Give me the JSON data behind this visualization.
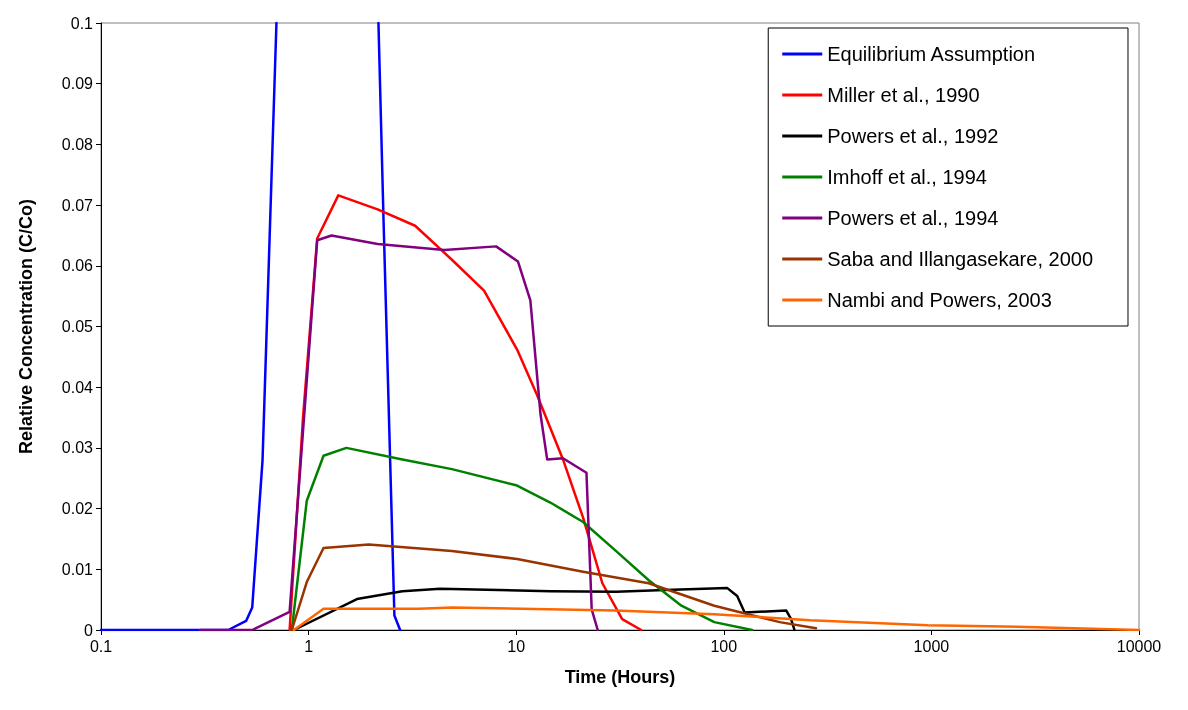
{
  "chart_data": {
    "type": "line",
    "xlabel": "Time (Hours)",
    "ylabel": "Relative Concentration (C/Co)",
    "log": "x",
    "xlim": [
      0.1,
      10000
    ],
    "xticks": [
      0.1,
      1,
      10,
      100,
      1000,
      10000
    ],
    "ylim": [
      0,
      0.1
    ],
    "yticks": [
      0,
      0.01,
      0.02,
      0.03,
      0.04,
      0.05,
      0.06,
      0.07,
      0.08,
      0.09,
      0.1
    ],
    "grid": false,
    "legend": "top right",
    "marker": "none",
    "line_style": "solid",
    "series": [
      {
        "name": "Equilibrium Assumption",
        "color": "#0000ff",
        "x": [
          0.1,
          0.3,
          0.41,
          0.5,
          0.535,
          0.6,
          0.7,
          1.2,
          2.17,
          2.3,
          2.59,
          2.76
        ],
        "values": [
          0,
          0,
          0,
          0.0015,
          0.0037,
          0.028,
          0.1,
          null,
          0.1,
          0.0666,
          0.0024,
          0
        ]
      },
      {
        "name": "Miller et al., 1990",
        "color": "#ff0000",
        "x": [
          0.81,
          0.94,
          1.1,
          1.39,
          2.15,
          3.26,
          4.9,
          7.0,
          10.1,
          12.6,
          16.8,
          21.0,
          26.0,
          32.4,
          40
        ],
        "values": [
          0,
          0.035,
          0.0645,
          0.0716,
          0.0693,
          0.0666,
          0.061,
          0.0559,
          0.0462,
          0.0387,
          0.0281,
          0.0185,
          0.0077,
          0.0018,
          0
        ]
      },
      {
        "name": "Powers et al., 1992",
        "color": "#000000",
        "x": [
          0.85,
          1.71,
          2.83,
          4.3,
          14.6,
          30.3,
          52,
          104,
          116,
          126,
          200,
          211,
          219
        ],
        "values": [
          0,
          0.0051,
          0.0064,
          0.0068,
          0.0064,
          0.0063,
          0.0066,
          0.0069,
          0.0056,
          0.0029,
          0.0032,
          0.0018,
          0
        ]
      },
      {
        "name": "Imhoff et al., 1994",
        "color": "#008000",
        "x": [
          0.83,
          0.98,
          1.18,
          1.52,
          2.83,
          4.9,
          10.1,
          14.6,
          21,
          30.3,
          43.5,
          62.5,
          90,
          137
        ],
        "values": [
          0,
          0.0213,
          0.0287,
          0.03,
          0.0281,
          0.0265,
          0.0238,
          0.021,
          0.0178,
          0.013,
          0.0082,
          0.004,
          0.0013,
          0
        ]
      },
      {
        "name": "Powers et al., 1994",
        "color": "#800080",
        "x": [
          0.3,
          0.535,
          0.81,
          1.1,
          1.29,
          2.15,
          4.5,
          8.0,
          10.2,
          11.7,
          13.1,
          14.1,
          16.8,
          21.8,
          23.1,
          24.7
        ],
        "values": [
          0,
          0,
          0.003,
          0.0642,
          0.065,
          0.0636,
          0.0626,
          0.0632,
          0.0607,
          0.0543,
          0.0355,
          0.0281,
          0.0283,
          0.0259,
          0.0034,
          0
        ]
      },
      {
        "name": "Saba and Illangasekare, 2000",
        "color": "#993300",
        "x": [
          0.83,
          0.98,
          1.18,
          1.95,
          4.9,
          10.1,
          21,
          43.5,
          90,
          186,
          278
        ],
        "values": [
          0,
          0.0079,
          0.0135,
          0.0141,
          0.013,
          0.0117,
          0.0096,
          0.0077,
          0.004,
          0.0013,
          0.0003
        ]
      },
      {
        "name": "Nambi and Powers, 2003",
        "color": "#ff6600",
        "x": [
          0.85,
          1.18,
          3.4,
          4.9,
          30,
          90,
          260,
          960,
          2870,
          10000
        ],
        "values": [
          0,
          0.0035,
          0.0035,
          0.0037,
          0.0032,
          0.0026,
          0.0016,
          0.0008,
          0.0005,
          0
        ]
      }
    ]
  }
}
